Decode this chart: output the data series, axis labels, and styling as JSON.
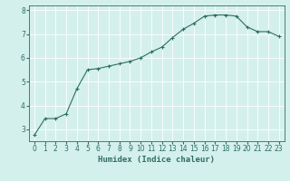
{
  "x": [
    0,
    1,
    2,
    3,
    4,
    5,
    6,
    7,
    8,
    9,
    10,
    11,
    12,
    13,
    14,
    15,
    16,
    17,
    18,
    19,
    20,
    21,
    22,
    23
  ],
  "y": [
    2.75,
    3.45,
    3.45,
    3.65,
    4.7,
    5.5,
    5.55,
    5.65,
    5.75,
    5.85,
    6.0,
    6.25,
    6.45,
    6.85,
    7.2,
    7.45,
    7.75,
    7.8,
    7.8,
    7.75,
    7.3,
    7.1,
    7.1,
    6.9
  ],
  "xlabel": "Humidex (Indice chaleur)",
  "ylim": [
    2.5,
    8.2
  ],
  "xlim": [
    -0.5,
    23.5
  ],
  "bg_color": "#d4f0ec",
  "line_color": "#2e6e62",
  "marker_color": "#2e6e62",
  "grid_color": "#ffffff",
  "axis_color": "#2e6e62",
  "yticks": [
    3,
    4,
    5,
    6,
    7,
    8
  ],
  "xticks": [
    0,
    1,
    2,
    3,
    4,
    5,
    6,
    7,
    8,
    9,
    10,
    11,
    12,
    13,
    14,
    15,
    16,
    17,
    18,
    19,
    20,
    21,
    22,
    23
  ],
  "fontsize_xlabel": 6.5,
  "fontsize_ticks": 5.5
}
